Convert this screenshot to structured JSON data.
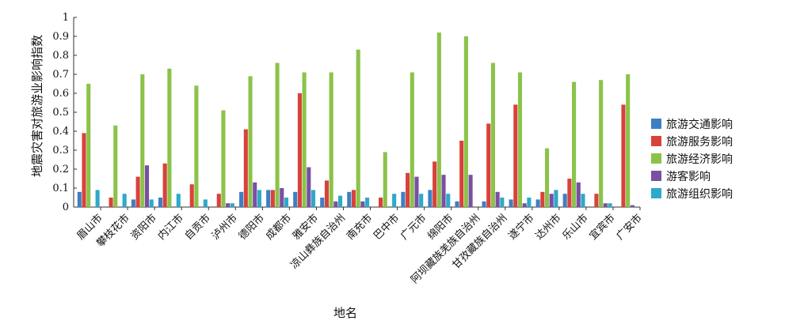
{
  "chart_data": {
    "type": "bar",
    "xlabel": "地名",
    "ylabel": "地震灾害对旅游业影响指数",
    "ylim": [
      0,
      1
    ],
    "yticks": [
      "0",
      "0.1",
      "0.2",
      "0.3",
      "0.4",
      "0.5",
      "0.6",
      "0.7",
      "0.8",
      "0.9",
      "1"
    ],
    "legend_position": "right",
    "categories": [
      "眉山市",
      "攀枝花市",
      "资阳市",
      "内江市",
      "自贡市",
      "泸州市",
      "德阳市",
      "成都市",
      "雅安市",
      "凉山彝族自治州",
      "南充市",
      "巴中市",
      "广元市",
      "绵阳市",
      "阿坝藏族羌族自治州",
      "甘孜藏族自治州",
      "遂宁市",
      "达州市",
      "乐山市",
      "宜宾市",
      "广安市"
    ],
    "series": [
      {
        "name": "旅游交通影响",
        "color": "#3d7fc4",
        "values": [
          0.08,
          0.0,
          0.04,
          0.05,
          0.0,
          0.0,
          0.08,
          0.09,
          0.08,
          0.05,
          0.08,
          0.0,
          0.08,
          0.09,
          0.03,
          0.03,
          0.04,
          0.04,
          0.07,
          0.0,
          0.0
        ]
      },
      {
        "name": "旅游服务影响",
        "color": "#d8423a",
        "values": [
          0.39,
          0.05,
          0.16,
          0.23,
          0.12,
          0.07,
          0.41,
          0.09,
          0.6,
          0.14,
          0.09,
          0.05,
          0.18,
          0.24,
          0.35,
          0.44,
          0.54,
          0.08,
          0.15,
          0.07,
          0.54
        ]
      },
      {
        "name": "旅游经济影响",
        "color": "#8bc34a",
        "values": [
          0.65,
          0.43,
          0.7,
          0.73,
          0.64,
          0.51,
          0.69,
          0.76,
          0.71,
          0.71,
          0.83,
          0.29,
          0.71,
          0.92,
          0.9,
          0.76,
          0.71,
          0.31,
          0.66,
          0.67,
          0.7
        ]
      },
      {
        "name": "游客影响",
        "color": "#7a4fa3",
        "values": [
          0.0,
          0.0,
          0.22,
          0.0,
          0.0,
          0.02,
          0.13,
          0.1,
          0.21,
          0.03,
          0.03,
          0.0,
          0.16,
          0.17,
          0.17,
          0.08,
          0.02,
          0.07,
          0.13,
          0.02,
          0.01
        ]
      },
      {
        "name": "旅游组织影响",
        "color": "#2ea9c9",
        "values": [
          0.09,
          0.07,
          0.04,
          0.07,
          0.04,
          0.02,
          0.09,
          0.05,
          0.09,
          0.06,
          0.05,
          0.07,
          0.07,
          0.07,
          0.0,
          0.05,
          0.05,
          0.09,
          0.07,
          0.02,
          0.0
        ]
      }
    ]
  }
}
